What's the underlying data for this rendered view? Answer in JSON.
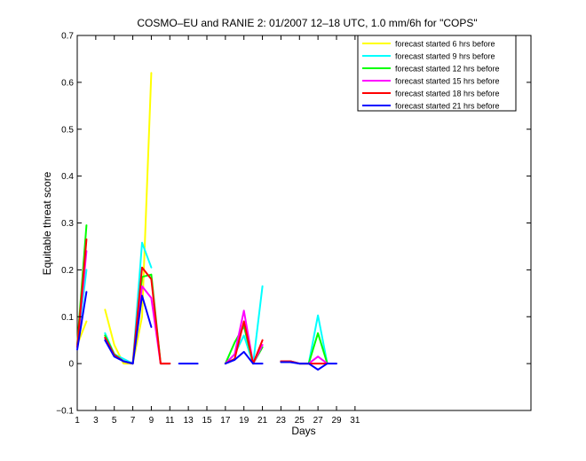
{
  "chart_data": {
    "type": "line",
    "title": "COSMO–EU and RANIE 2: 01/2007 12–18 UTC, 1.0 mm/6h for \"COPS\"",
    "xlabel": "Days",
    "ylabel": "Equitable threat score",
    "xlim": [
      1,
      50
    ],
    "ylim": [
      -0.1,
      0.7
    ],
    "xticks": [
      1,
      3,
      5,
      7,
      9,
      11,
      13,
      15,
      17,
      19,
      21,
      23,
      25,
      27,
      29,
      31
    ],
    "yticks": [
      -0.1,
      0,
      0.1,
      0.2,
      0.3,
      0.4,
      0.5,
      0.6,
      0.7
    ],
    "ytick_labels": [
      "−0.1",
      "0",
      "0.1",
      "0.2",
      "0.3",
      "0.4",
      "0.5",
      "0.6",
      "0.7"
    ],
    "grid": false,
    "legend_position": "top-right",
    "series": [
      {
        "name": "forecast started 6 hrs before",
        "color": "#ffff00",
        "segments": [
          [
            [
              1,
              0.04
            ],
            [
              2,
              0.09
            ]
          ],
          [
            [
              4,
              0.115
            ],
            [
              5,
              0.04
            ],
            [
              6,
              0.0
            ],
            [
              7,
              0.0
            ],
            [
              8,
              0.1
            ],
            [
              9,
              0.62
            ]
          ]
        ]
      },
      {
        "name": "forecast started 9 hrs before",
        "color": "#00ffff",
        "segments": [
          [
            [
              1,
              0.04
            ],
            [
              2,
              0.2
            ]
          ],
          [
            [
              4,
              0.065
            ],
            [
              5,
              0.02
            ],
            [
              6,
              0.01
            ],
            [
              7,
              0.0
            ],
            [
              8,
              0.258
            ],
            [
              9,
              0.205
            ]
          ],
          [
            [
              17,
              0.0
            ],
            [
              18,
              0.02
            ],
            [
              19,
              0.06
            ],
            [
              20,
              0.0
            ],
            [
              21,
              0.165
            ]
          ],
          [
            [
              23,
              0.005
            ],
            [
              24,
              0.005
            ],
            [
              25,
              0.0
            ],
            [
              26,
              0.0
            ],
            [
              27,
              0.103
            ],
            [
              28,
              0.0
            ]
          ]
        ]
      },
      {
        "name": "forecast started 12 hrs before",
        "color": "#00ff00",
        "segments": [
          [
            [
              1,
              0.04
            ],
            [
              2,
              0.295
            ]
          ],
          [
            [
              4,
              0.06
            ],
            [
              5,
              0.02
            ],
            [
              6,
              0.005
            ],
            [
              7,
              0.0
            ],
            [
              8,
              0.185
            ],
            [
              9,
              0.19
            ],
            [
              10,
              0.0
            ],
            [
              11,
              0.0
            ]
          ],
          [
            [
              17,
              0.0
            ],
            [
              18,
              0.045
            ],
            [
              19,
              0.08
            ],
            [
              20,
              0.0
            ],
            [
              21,
              0.035
            ]
          ],
          [
            [
              23,
              0.005
            ],
            [
              24,
              0.005
            ],
            [
              25,
              0.0
            ],
            [
              26,
              0.0
            ],
            [
              27,
              0.065
            ],
            [
              28,
              0.0
            ]
          ]
        ]
      },
      {
        "name": "forecast started 15 hrs before",
        "color": "#ff00ff",
        "segments": [
          [
            [
              1,
              0.035
            ],
            [
              2,
              0.24
            ]
          ],
          [
            [
              4,
              0.055
            ],
            [
              5,
              0.018
            ],
            [
              6,
              0.005
            ],
            [
              7,
              0.0
            ],
            [
              8,
              0.165
            ],
            [
              9,
              0.14
            ],
            [
              10,
              0.0
            ],
            [
              11,
              0.0
            ]
          ],
          [
            [
              17,
              0.0
            ],
            [
              18,
              0.02
            ],
            [
              19,
              0.113
            ],
            [
              20,
              0.0
            ],
            [
              21,
              0.04
            ]
          ],
          [
            [
              23,
              0.005
            ],
            [
              24,
              0.005
            ],
            [
              25,
              0.0
            ],
            [
              26,
              0.0
            ],
            [
              27,
              0.015
            ],
            [
              28,
              0.0
            ]
          ]
        ]
      },
      {
        "name": "forecast started 18 hrs before",
        "color": "#ff0000",
        "segments": [
          [
            [
              1,
              0.035
            ],
            [
              2,
              0.265
            ]
          ],
          [
            [
              4,
              0.055
            ],
            [
              5,
              0.018
            ],
            [
              6,
              0.005
            ],
            [
              7,
              0.0
            ],
            [
              8,
              0.205
            ],
            [
              9,
              0.18
            ],
            [
              10,
              0.0
            ],
            [
              11,
              0.0
            ]
          ],
          [
            [
              17,
              0.0
            ],
            [
              18,
              0.01
            ],
            [
              19,
              0.09
            ],
            [
              20,
              0.0
            ],
            [
              21,
              0.05
            ]
          ],
          [
            [
              23,
              0.005
            ],
            [
              24,
              0.005
            ],
            [
              25,
              0.0
            ],
            [
              26,
              0.0
            ],
            [
              27,
              0.0
            ],
            [
              28,
              0.0
            ]
          ]
        ]
      },
      {
        "name": "forecast started 21 hrs before",
        "color": "#0000ff",
        "segments": [
          [
            [
              1,
              0.03
            ],
            [
              2,
              0.153
            ]
          ],
          [
            [
              4,
              0.05
            ],
            [
              5,
              0.015
            ],
            [
              6,
              0.005
            ],
            [
              7,
              0.0
            ],
            [
              8,
              0.145
            ],
            [
              9,
              0.078
            ]
          ],
          [
            [
              12,
              0.0
            ],
            [
              13,
              0.0
            ],
            [
              14,
              0.0
            ]
          ],
          [
            [
              17,
              0.0
            ],
            [
              18,
              0.008
            ],
            [
              19,
              0.025
            ],
            [
              20,
              0.0
            ],
            [
              21,
              0.0
            ]
          ],
          [
            [
              23,
              0.003
            ],
            [
              24,
              0.003
            ],
            [
              25,
              0.0
            ],
            [
              26,
              0.0
            ],
            [
              27,
              -0.013
            ],
            [
              28,
              0.0
            ],
            [
              29,
              0.0
            ]
          ]
        ]
      }
    ]
  }
}
